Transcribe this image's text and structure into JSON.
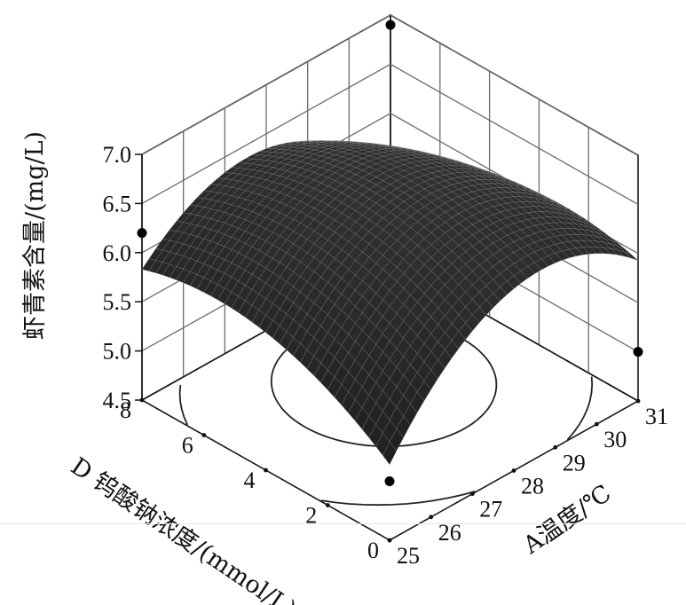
{
  "chart_data": {
    "type": "surface",
    "title": "",
    "zlabel": "虾青素含量/(mg/L)",
    "xlabel": "A温度/℃",
    "ylabel": "D 钨酸钠浓度/(mmol/L)",
    "z_ticks": [
      "4.5",
      "5.0",
      "5.5",
      "6.0",
      "6.5",
      "7.0"
    ],
    "x_ticks": [
      "25",
      "26",
      "27",
      "28",
      "29",
      "30",
      "31"
    ],
    "y_ticks": [
      "0",
      "2",
      "4",
      "6",
      "8"
    ],
    "zlim": [
      4.5,
      7.0
    ],
    "xlim": [
      25,
      31
    ],
    "ylim": [
      0,
      8
    ],
    "surface_corners": [
      {
        "x": 25,
        "y": 0,
        "z": 4.95
      },
      {
        "x": 25,
        "y": 8,
        "z": 6.0
      },
      {
        "x": 31,
        "y": 8,
        "z": 6.55
      },
      {
        "x": 31,
        "y": 0,
        "z": 5.0
      }
    ],
    "surface_peak": {
      "x": 28,
      "y": 4,
      "z": 6.7
    },
    "design_points": [
      {
        "x": 25,
        "y": 8,
        "z": 6.2
      },
      {
        "x": 31,
        "y": 8,
        "z": 6.9
      },
      {
        "x": 25,
        "y": 0,
        "z": 5.1
      },
      {
        "x": 31,
        "y": 0,
        "z": 5.0
      }
    ],
    "grid": true,
    "surface_color": "#2b2b2b"
  }
}
